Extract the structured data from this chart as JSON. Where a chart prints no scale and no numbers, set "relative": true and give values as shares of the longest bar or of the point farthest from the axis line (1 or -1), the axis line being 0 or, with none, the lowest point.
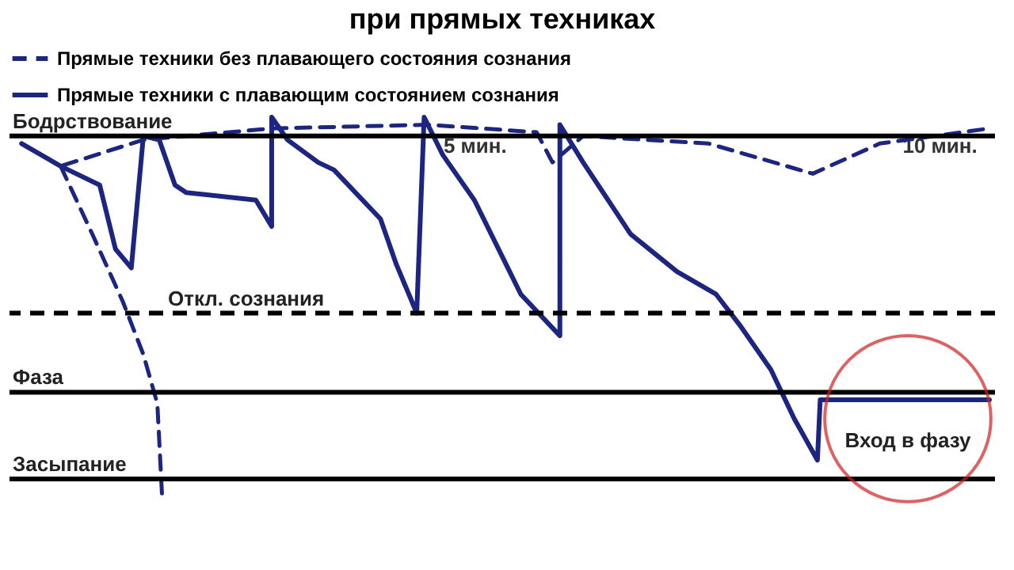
{
  "chart_data": {
    "type": "line",
    "title": "при прямых техниках",
    "relative": true,
    "xlim": [
      0,
      10.6
    ],
    "xticks": [
      {
        "value": 5,
        "label": "5 мин."
      },
      {
        "value": 10,
        "label": "10 мин."
      }
    ],
    "tick_labels": "x",
    "grid": false,
    "legend": "top",
    "series": [
      {
        "name": "Прямые техники без плавающего состояния сознания",
        "color": "#1c2580",
        "line_style": "dashed",
        "x": [
          0.13,
          0.55,
          1.44,
          2.82,
          4.5,
          5.67,
          5.84,
          6.17,
          7.52,
          8.64,
          9.36,
          10.54
        ],
        "values": [
          0.93,
          0.87,
          0.94,
          0.97,
          0.98,
          0.96,
          0.88,
          0.95,
          0.93,
          0.85,
          0.93,
          0.97
        ]
      },
      {
        "name": "Прямые техники с плавающим состоянием сознания",
        "color": "#1c2580",
        "line_style": "solid",
        "x": [
          0.13,
          0.55,
          0.97,
          1.14,
          1.31,
          1.44,
          1.61,
          1.78,
          1.9,
          2.65,
          2.82,
          2.82,
          2.99,
          3.32,
          3.49,
          3.99,
          4.16,
          4.38,
          4.46,
          4.66,
          5.0,
          5.34,
          5.5,
          5.92,
          5.92,
          6.17,
          6.68,
          7.18,
          7.6,
          7.85,
          8.19,
          8.44,
          8.69,
          8.72,
          10.54
        ],
        "values": [
          0.93,
          0.87,
          0.82,
          0.65,
          0.6,
          0.95,
          0.94,
          0.82,
          0.8,
          0.78,
          0.71,
          1.0,
          0.94,
          0.88,
          0.86,
          0.73,
          0.61,
          0.48,
          1.0,
          0.9,
          0.78,
          0.61,
          0.53,
          0.42,
          0.98,
          0.88,
          0.69,
          0.59,
          0.53,
          0.45,
          0.33,
          0.2,
          0.09,
          0.25,
          0.25
        ]
      },
      {
        "color": "#1c2580",
        "line_style": "dashed",
        "x": [
          0.55,
          0.89,
          1.22,
          1.44,
          1.59,
          1.64
        ],
        "values": [
          0.87,
          0.69,
          0.51,
          0.37,
          0.24,
          0.0
        ]
      }
    ],
    "ref_lines": [
      {
        "axis": "y",
        "value": 0.95,
        "label": "Бодрствование",
        "color": "#000000",
        "line_style": "solid"
      },
      {
        "axis": "y",
        "value": 0.48,
        "label": "Откл. сознания",
        "color": "#000000",
        "line_style": "dashed"
      },
      {
        "axis": "y",
        "value": 0.27,
        "label": "Фаза",
        "color": "#000000",
        "line_style": "solid"
      },
      {
        "axis": "y",
        "value": 0.04,
        "label": "Засыпание",
        "color": "#000000",
        "line_style": "solid"
      }
    ],
    "annotations": [
      "Вход в фазу"
    ]
  }
}
